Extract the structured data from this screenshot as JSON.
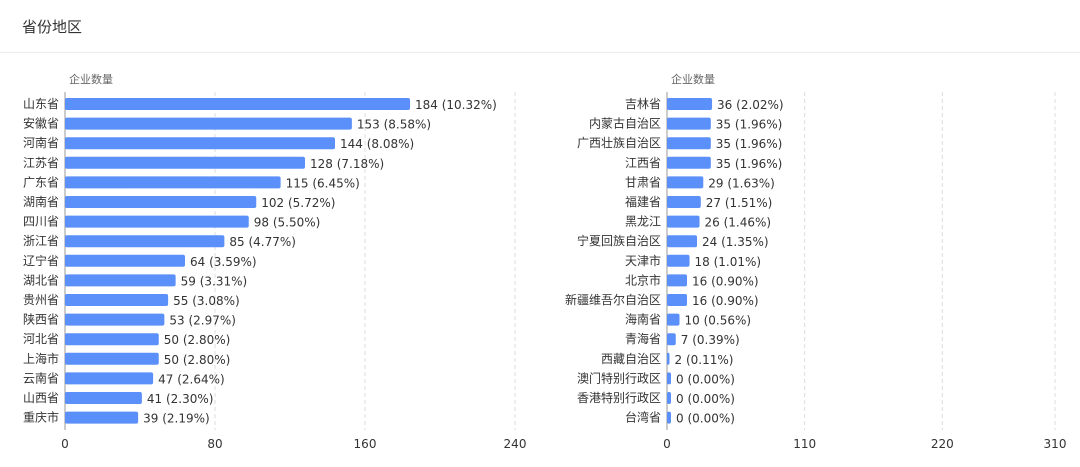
{
  "header": {
    "title": "省份地区"
  },
  "colors": {
    "bar": "#5b8ff9",
    "grid": "#dcdcdc",
    "axis": "#999999"
  },
  "chart_data": [
    {
      "type": "bar",
      "orientation": "horizontal",
      "ylabel": "企业数量",
      "xlim": [
        0,
        240
      ],
      "xticks": [
        0,
        80,
        160,
        240
      ],
      "grid": true,
      "categories": [
        "山东省",
        "安徽省",
        "河南省",
        "江苏省",
        "广东省",
        "湖南省",
        "四川省",
        "浙江省",
        "辽宁省",
        "湖北省",
        "贵州省",
        "陕西省",
        "河北省",
        "上海市",
        "云南省",
        "山西省",
        "重庆市"
      ],
      "values": [
        184,
        153,
        144,
        128,
        115,
        102,
        98,
        85,
        64,
        59,
        55,
        53,
        50,
        50,
        47,
        41,
        39
      ],
      "labels": [
        "184 (10.32%)",
        "153 (8.58%)",
        "144 (8.08%)",
        "128 (7.18%)",
        "115 (6.45%)",
        "102 (5.72%)",
        "98 (5.50%)",
        "85 (4.77%)",
        "64 (3.59%)",
        "59 (3.31%)",
        "55 (3.08%)",
        "53 (2.97%)",
        "50 (2.80%)",
        "50 (2.80%)",
        "47 (2.64%)",
        "41 (2.30%)",
        "39 (2.19%)"
      ]
    },
    {
      "type": "bar",
      "orientation": "horizontal",
      "ylabel": "企业数量",
      "xlim": [
        0,
        310
      ],
      "xticks": [
        0,
        110,
        220,
        310
      ],
      "grid": true,
      "categories": [
        "吉林省",
        "内蒙古自治区",
        "广西壮族自治区",
        "江西省",
        "甘肃省",
        "福建省",
        "黑龙江",
        "宁夏回族自治区",
        "天津市",
        "北京市",
        "新疆维吾尔自治区",
        "海南省",
        "青海省",
        "西藏自治区",
        "澳门特别行政区",
        "香港特别行政区",
        "台湾省"
      ],
      "values": [
        36,
        35,
        35,
        35,
        29,
        27,
        26,
        24,
        18,
        16,
        16,
        10,
        7,
        2,
        0,
        0,
        0
      ],
      "labels": [
        "36 (2.02%)",
        "35 (1.96%)",
        "35 (1.96%)",
        "35 (1.96%)",
        "29 (1.63%)",
        "27 (1.51%)",
        "26 (1.46%)",
        "24 (1.35%)",
        "18 (1.01%)",
        "16 (0.90%)",
        "16 (0.90%)",
        "10 (0.56%)",
        "7 (0.39%)",
        "2 (0.11%)",
        "0 (0.00%)",
        "0 (0.00%)",
        "0 (0.00%)"
      ]
    }
  ]
}
